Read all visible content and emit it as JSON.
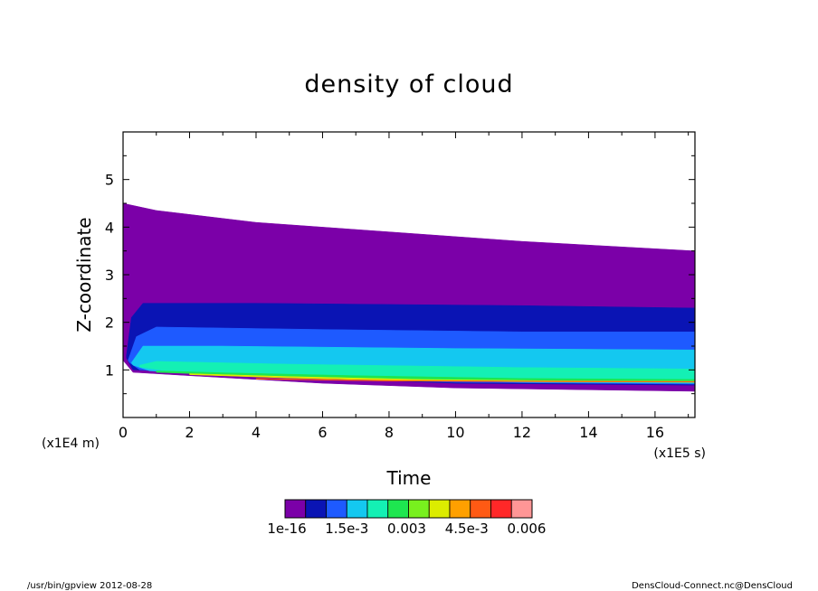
{
  "chart_data": {
    "type": "heatmap",
    "title": "density of cloud",
    "xlabel": "Time",
    "ylabel": "Z-coordinate",
    "x_unit": "(x1E5 s)",
    "y_unit": "(x1E4 m)",
    "xlim": [
      0,
      17.2
    ],
    "ylim": [
      0,
      6
    ],
    "x_ticks": [
      0,
      2,
      4,
      6,
      8,
      10,
      12,
      14,
      16
    ],
    "x_tick_labels": [
      "0",
      "2",
      "4",
      "6",
      "8",
      "10",
      "12",
      "14",
      "16"
    ],
    "y_ticks": [
      1,
      2,
      3,
      4,
      5
    ],
    "y_tick_labels": [
      "1",
      "2",
      "3",
      "4",
      "5"
    ],
    "grid": false,
    "colorbar": {
      "colors": [
        "#7b00a8",
        "#0a14b4",
        "#1e5aff",
        "#14c8f0",
        "#14f0b4",
        "#1ee650",
        "#78f01e",
        "#dcec00",
        "#ffa000",
        "#ff5a14",
        "#ff2828",
        "#ff9696"
      ],
      "tick_labels": [
        "1e-16",
        "1.5e-3",
        "0.003",
        "4.5e-3",
        "0.006"
      ]
    },
    "bands": [
      {
        "name": "outer",
        "color": "#7b00a8",
        "top": [
          [
            0,
            4.5
          ],
          [
            1,
            4.35
          ],
          [
            4,
            4.1
          ],
          [
            8,
            3.9
          ],
          [
            12,
            3.7
          ],
          [
            17.2,
            3.5
          ]
        ],
        "bottom": [
          [
            0,
            1.2
          ],
          [
            0.3,
            0.95
          ],
          [
            2,
            0.88
          ],
          [
            6,
            0.72
          ],
          [
            10,
            0.62
          ],
          [
            17.2,
            0.55
          ]
        ]
      },
      {
        "name": "upper-blue",
        "color": "#0a14b4",
        "top": [
          [
            0.1,
            1.3
          ],
          [
            0.25,
            2.1
          ],
          [
            0.6,
            2.4
          ],
          [
            4,
            2.4
          ],
          [
            12,
            2.35
          ],
          [
            17.2,
            2.3
          ]
        ],
        "bottom": [
          [
            0.1,
            1.25
          ],
          [
            0.3,
            1.0
          ],
          [
            2,
            0.95
          ],
          [
            6,
            0.82
          ],
          [
            10,
            0.72
          ],
          [
            17.2,
            0.68
          ]
        ]
      },
      {
        "name": "mid-blue",
        "color": "#1e5aff",
        "top": [
          [
            0.15,
            1.2
          ],
          [
            0.4,
            1.7
          ],
          [
            1,
            1.9
          ],
          [
            6,
            1.85
          ],
          [
            12,
            1.8
          ],
          [
            17.2,
            1.8
          ]
        ],
        "bottom": [
          [
            0.2,
            1.15
          ],
          [
            0.5,
            1.0
          ],
          [
            2,
            0.95
          ],
          [
            6,
            0.82
          ],
          [
            10,
            0.74
          ],
          [
            17.2,
            0.7
          ]
        ]
      },
      {
        "name": "cyan",
        "color": "#14c8f0",
        "top": [
          [
            0.25,
            1.15
          ],
          [
            0.6,
            1.5
          ],
          [
            3,
            1.5
          ],
          [
            10,
            1.45
          ],
          [
            17.2,
            1.42
          ]
        ],
        "bottom": [
          [
            0.3,
            1.1
          ],
          [
            0.8,
            0.98
          ],
          [
            3,
            0.92
          ],
          [
            7,
            0.82
          ],
          [
            12,
            0.74
          ],
          [
            17.2,
            0.72
          ]
        ]
      },
      {
        "name": "teal",
        "color": "#14f0b4",
        "top": [
          [
            0.5,
            1.1
          ],
          [
            1,
            1.18
          ],
          [
            5,
            1.12
          ],
          [
            12,
            1.05
          ],
          [
            17.2,
            1.02
          ]
        ],
        "bottom": [
          [
            0.5,
            1.06
          ],
          [
            1.5,
            0.96
          ],
          [
            5,
            0.86
          ],
          [
            10,
            0.78
          ],
          [
            17.2,
            0.74
          ]
        ]
      },
      {
        "name": "green",
        "color": "#1ee650",
        "top": [
          [
            1,
            0.98
          ],
          [
            3,
            0.94
          ],
          [
            7,
            0.88
          ],
          [
            12,
            0.82
          ],
          [
            17.2,
            0.8
          ]
        ],
        "bottom": [
          [
            1,
            0.95
          ],
          [
            3,
            0.9
          ],
          [
            7,
            0.82
          ],
          [
            12,
            0.76
          ],
          [
            17.2,
            0.74
          ]
        ]
      },
      {
        "name": "yellow",
        "color": "#dcec00",
        "top": [
          [
            2,
            0.92
          ],
          [
            5,
            0.86
          ],
          [
            9,
            0.8
          ],
          [
            13,
            0.77
          ],
          [
            17.2,
            0.76
          ]
        ],
        "bottom": [
          [
            2,
            0.9
          ],
          [
            5,
            0.83
          ],
          [
            9,
            0.77
          ],
          [
            13,
            0.75
          ],
          [
            17.2,
            0.74
          ]
        ]
      },
      {
        "name": "orange",
        "color": "#ff5a14",
        "top": [
          [
            4,
            0.82
          ],
          [
            8,
            0.78
          ],
          [
            12,
            0.765
          ],
          [
            17.2,
            0.755
          ]
        ],
        "bottom": [
          [
            4,
            0.805
          ],
          [
            8,
            0.765
          ],
          [
            12,
            0.752
          ],
          [
            17.2,
            0.745
          ]
        ]
      }
    ]
  },
  "footer": {
    "left": "/usr/bin/gpview   2012-08-28",
    "right": "DensCloud-Connect.nc@DensCloud"
  }
}
